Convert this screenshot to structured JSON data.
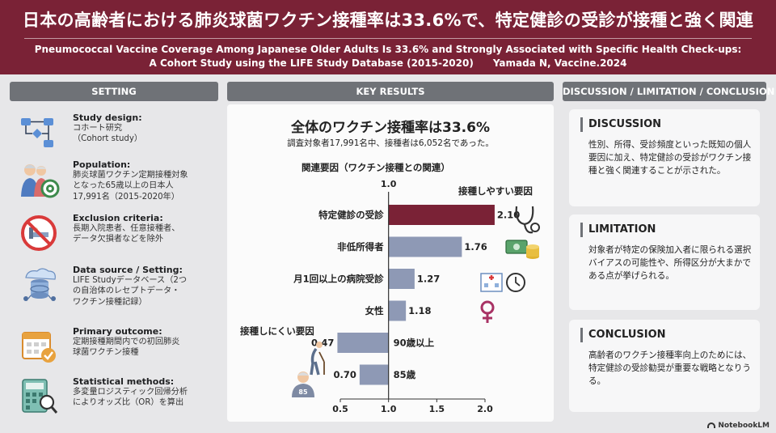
{
  "header": {
    "jp_title": "日本の高齢者における肺炎球菌ワクチン接種率は33.6%で、特定健診の受診が接種と強く関連",
    "en_title_line1": "Pneumococcal Vaccine Coverage Among Japanese Older Adults Is 33.6% and Strongly Associated with Specific Health Check-ups:",
    "en_title_line2": "A Cohort Study using the LIFE Study Database (2015-2020)",
    "citation": "Yamada N, Vaccine.2024"
  },
  "setting": {
    "heading": "SETTING",
    "items": [
      {
        "title": "Study design:",
        "desc": "コホート研究\n（Cohort study）",
        "icon": "flowchart-icon"
      },
      {
        "title": "Population:",
        "desc": "肺炎球菌ワクチン定期接種対象\nとなった65歳以上の日本人\n17,991名（2015-2020年）",
        "icon": "elderly-couple-target-icon"
      },
      {
        "title": "Exclusion criteria:",
        "desc": "長期入院患者、任意接種者、\nデータ欠損者などを除外",
        "icon": "no-hospital-bed-icon"
      },
      {
        "title": "Data source / Setting:",
        "desc": "LIFE Studyデータベース（2つ\nの自治体のレセプトデータ・\nワクチン接種記録）",
        "icon": "database-icon"
      },
      {
        "title": "Primary outcome:",
        "desc": "定期接種期間内での初回肺炎\n球菌ワクチン接種",
        "icon": "calendar-check-icon"
      },
      {
        "title": "Statistical methods:",
        "desc": "多変量ロジスティック回帰分析\nによりオッズ比（OR）を算出",
        "icon": "calculator-magnifier-icon"
      }
    ]
  },
  "results": {
    "heading": "KEY RESULTS",
    "big": "全体のワクチン接種率は33.6%",
    "sub": "調査対象者17,991名中、接種者は6,052名であった。",
    "factor_title": "関連要因（ワクチン接種との関連）",
    "easy_label": "接種しやすい要因",
    "hard_label": "接種しにくい要因"
  },
  "chart_data": {
    "type": "bar",
    "title": "関連要因（ワクチン接種との関連）",
    "reference": 1.0,
    "reference_label": "1.0",
    "xlim": [
      0.5,
      2.0
    ],
    "xticks": [
      "0.5",
      "1.0",
      "1.5",
      "2.0"
    ],
    "categories": [
      "特定健診の受診",
      "非低所得者",
      "月1回以上の病院受診",
      "女性",
      "90歳以上",
      "85歳"
    ],
    "values": [
      2.1,
      1.76,
      1.27,
      1.18,
      0.47,
      0.7
    ],
    "value_labels": [
      "2.10",
      "1.76",
      "1.27",
      "1.18",
      "0.47",
      "0.70"
    ],
    "colors": [
      "#7a2236",
      "#8e99b5",
      "#8e99b5",
      "#8e99b5",
      "#8e99b5",
      "#8e99b5"
    ],
    "icons": [
      "stethoscope-icon",
      "money-icon",
      "hospital-clock-icon",
      "female-symbol-icon",
      "elderly-cane-icon",
      "elderly-85-icon"
    ]
  },
  "discussion": {
    "heading": "DISCUSSION / LIMITATION / CONCLUSION",
    "cards": [
      {
        "title": "DISCUSSION",
        "text": "性別、所得、受診頻度といった既知の個人要因に加え、特定健診の受診がワクチン接種と強く関連することが示された。"
      },
      {
        "title": "LIMITATION",
        "text": "対象者が特定の保険加入者に限られる選択バイアスの可能性や、所得区分が大まかである点が挙げられる。"
      },
      {
        "title": "CONCLUSION",
        "text": "高齢者のワクチン接種率向上のためには、特定健診の受診勧奨が重要な戦略となりうる。"
      }
    ]
  },
  "footer": {
    "logo": "NotebookLM"
  }
}
